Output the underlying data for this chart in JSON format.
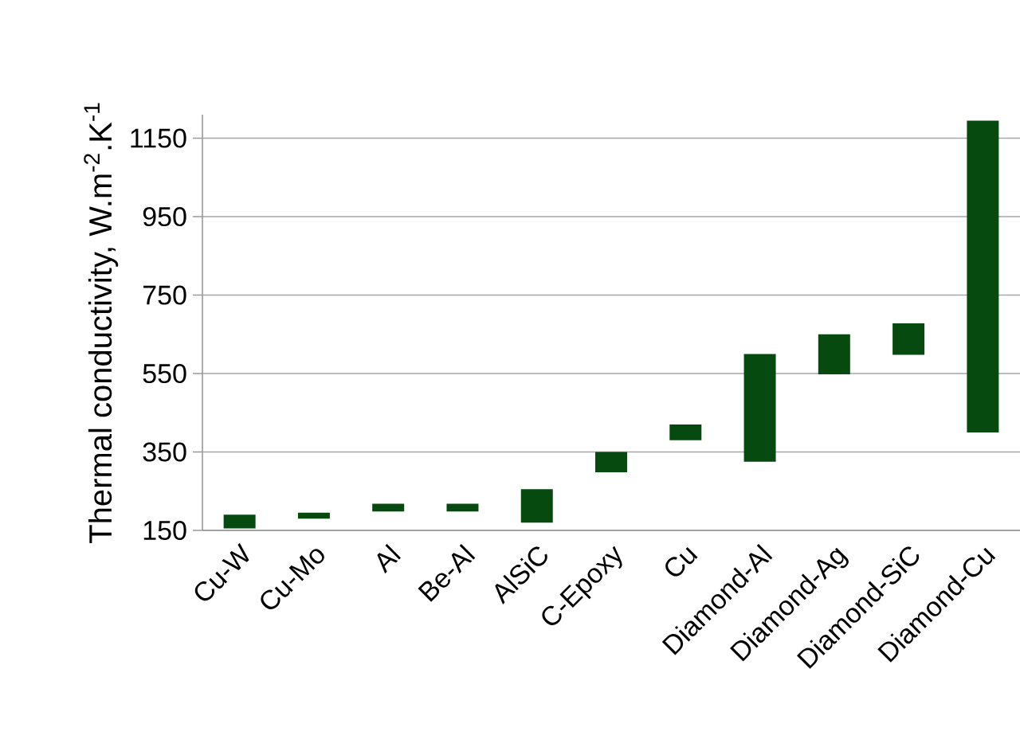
{
  "chart_data": {
    "type": "bar",
    "ylabel": "Thermal conductivity, W.m$^{-2}$.K$^{-1}$",
    "categories": [
      "Cu-W",
      "Cu-Mo",
      "Al",
      "Be-Al",
      "AlSiC",
      "C-Epoxy",
      "Cu",
      "Diamond-Al",
      "Diamond-Ag",
      "Diamond-SiC",
      "Diamond-Cu"
    ],
    "base": [
      155,
      180,
      198,
      198,
      170,
      298,
      380,
      325,
      548,
      598,
      400
    ],
    "values": [
      35,
      15,
      20,
      20,
      85,
      52,
      40,
      275,
      102,
      80,
      795
    ],
    "color": "#074a10",
    "ylim": [
      150,
      1210
    ],
    "yticks": [
      150,
      350,
      550,
      750,
      950,
      1150
    ],
    "grid": "y"
  }
}
